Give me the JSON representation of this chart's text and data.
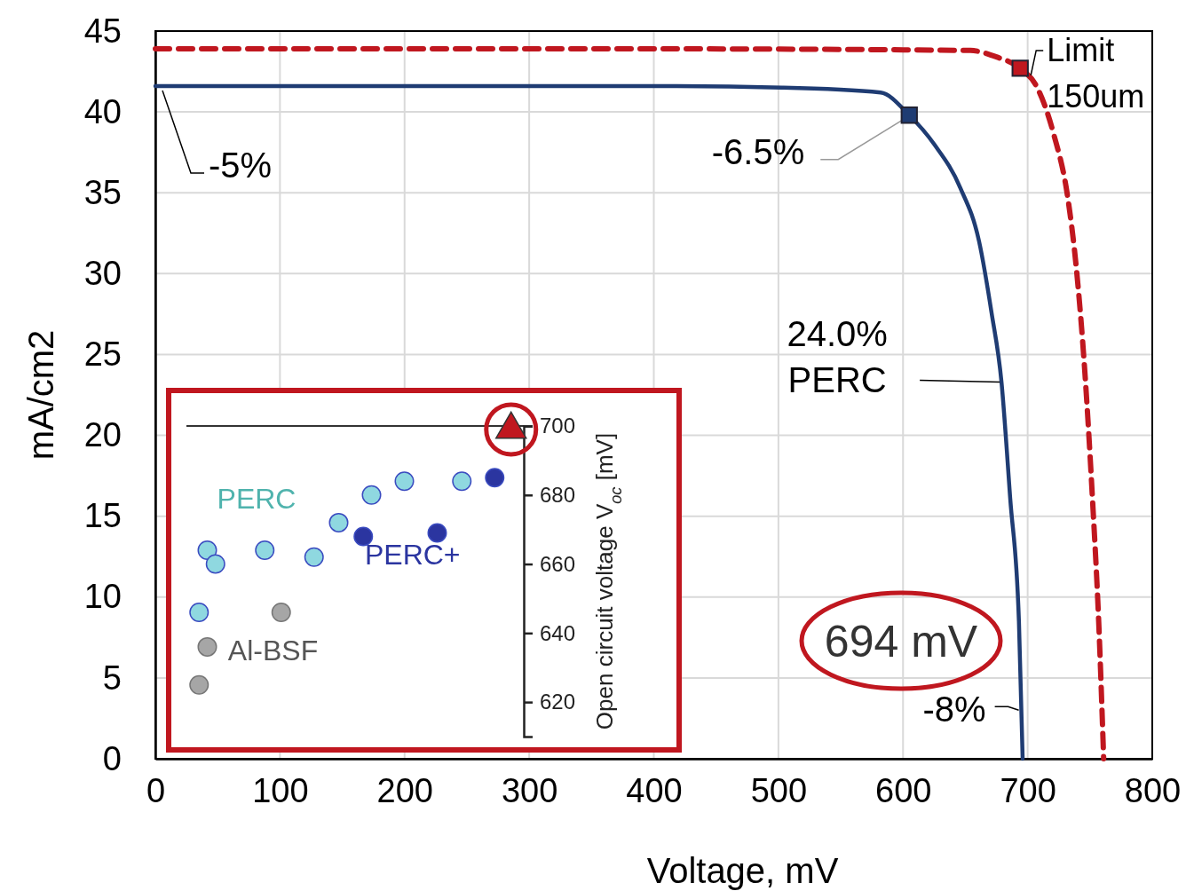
{
  "chart_data": [
    {
      "type": "line",
      "xlabel": "Voltage, mV",
      "ylabel": "mA/cm2",
      "xlim": [
        0,
        800
      ],
      "ylim": [
        0,
        45
      ],
      "xticks": [
        0,
        100,
        200,
        300,
        400,
        500,
        600,
        700,
        800
      ],
      "yticks": [
        0,
        5,
        10,
        15,
        20,
        25,
        30,
        35,
        40,
        45
      ],
      "grid": true,
      "series": [
        {
          "color": "#1f3c73",
          "line_style": "solid",
          "x": [
            0,
            100,
            200,
            300,
            400,
            503,
            582,
            605,
            625,
            646,
            661,
            671,
            679,
            686,
            693,
            696
          ],
          "values": [
            41.6,
            41.6,
            41.6,
            41.6,
            41.6,
            41.5,
            41.2,
            39.8,
            38.0,
            35.3,
            32.0,
            27.6,
            23.3,
            16.1,
            8.5,
            0
          ]
        },
        {
          "color": "#c0171f",
          "line_style": "dashed",
          "x": [
            0,
            200,
            400,
            654,
            675,
            694,
            707,
            721,
            732,
            739,
            746,
            752,
            757,
            761
          ],
          "values": [
            43.9,
            43.9,
            43.9,
            43.8,
            43.4,
            42.7,
            41.6,
            38.6,
            34.8,
            30.4,
            23.8,
            16.1,
            8.5,
            0
          ]
        },
        {
          "type": "scatter",
          "marker": "square",
          "color": "#1f3c73",
          "x": [
            605
          ],
          "values": [
            39.8
          ]
        },
        {
          "type": "scatter",
          "marker": "square",
          "color": "#c0171f",
          "x": [
            694
          ],
          "values": [
            42.7
          ]
        }
      ],
      "annotations": [
        {
          "text": "-5%",
          "x": 0,
          "y": 41.6
        },
        {
          "text": "-6.5%",
          "x": 605,
          "y": 39.8
        },
        {
          "text": "Limit\n150um",
          "x": 694,
          "y": 42.7
        },
        {
          "text": "24.0%\nPERC",
          "x": 679,
          "y": 23.3
        },
        "694 mV",
        {
          "text": "-8%",
          "x": 695,
          "y": 3
        }
      ]
    },
    {
      "type": "scatter",
      "categories": [
        null,
        null,
        null,
        null,
        null,
        null,
        null,
        null,
        null,
        null,
        null,
        null,
        null,
        null,
        null,
        null,
        null,
        null,
        null,
        null,
        null,
        null,
        null,
        null,
        null,
        null,
        null,
        null,
        null,
        null,
        null,
        null,
        null,
        null,
        null,
        null,
        null,
        null,
        null,
        null,
        null
      ],
      "ylabel": "Open circuit voltage V$_{oc}$ [mV]",
      "ylim": [
        610,
        700
      ],
      "yticks": [
        620,
        640,
        660,
        680,
        700
      ],
      "tick_labels": "y",
      "marker": "circle",
      "series": [
        {
          "name": "Al-BSF",
          "color": "#a6a6a6",
          "values": [
            null,
            625,
            636,
            null,
            null,
            null,
            null,
            null,
            null,
            null,
            null,
            646,
            null,
            null,
            null,
            null,
            null,
            null,
            null,
            null,
            null,
            null,
            null,
            null,
            null,
            null,
            null,
            null,
            null,
            null,
            null,
            null,
            null,
            null,
            null,
            null,
            null,
            null,
            null,
            null,
            null
          ]
        },
        {
          "name": "PERC",
          "color": "#8fd8e0",
          "values": [
            null,
            646,
            664,
            660,
            null,
            null,
            null,
            null,
            null,
            664,
            null,
            null,
            null,
            null,
            null,
            662,
            null,
            null,
            672,
            null,
            null,
            null,
            680,
            null,
            null,
            null,
            684,
            null,
            null,
            null,
            null,
            null,
            null,
            684,
            null,
            null,
            null,
            null,
            null,
            null,
            null
          ]
        },
        {
          "name": "PERC+",
          "color": "#2b35a0",
          "values": [
            null,
            null,
            null,
            null,
            null,
            null,
            null,
            null,
            null,
            null,
            null,
            null,
            null,
            null,
            null,
            null,
            null,
            null,
            null,
            null,
            null,
            668,
            null,
            null,
            null,
            null,
            null,
            null,
            null,
            null,
            669,
            null,
            null,
            null,
            null,
            null,
            null,
            685,
            null,
            null,
            null
          ]
        },
        {
          "marker": "triangle",
          "color": "#c0171f",
          "values": [
            null,
            null,
            null,
            null,
            null,
            null,
            null,
            null,
            null,
            null,
            null,
            null,
            null,
            null,
            null,
            null,
            null,
            null,
            null,
            null,
            null,
            null,
            null,
            null,
            null,
            null,
            null,
            null,
            null,
            null,
            null,
            null,
            null,
            null,
            null,
            null,
            null,
            null,
            null,
            699,
            null
          ]
        }
      ]
    }
  ]
}
